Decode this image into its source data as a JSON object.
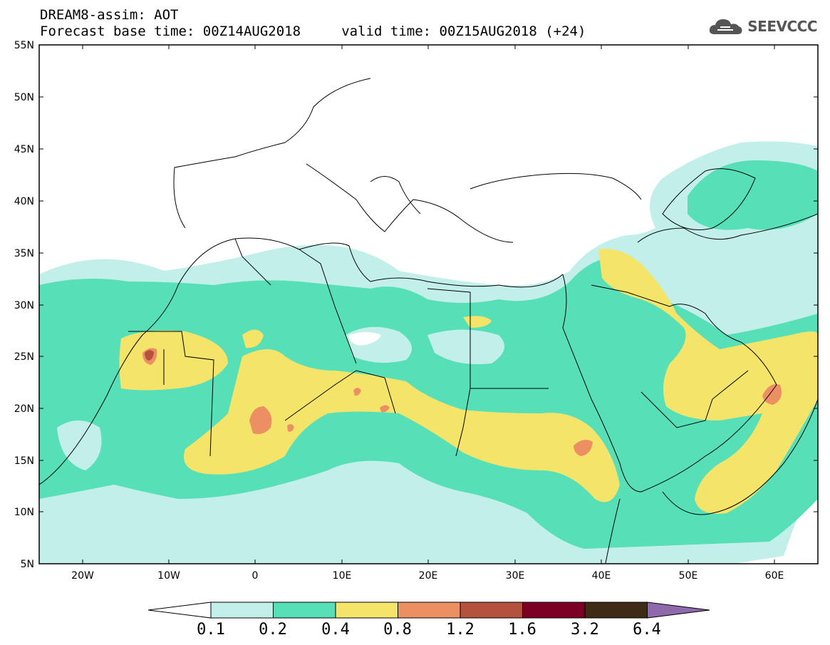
{
  "title": {
    "line1": "DREAM8-assim: AOT",
    "line2": "Forecast base time: 00Z14AUG2018     valid time: 00Z15AUG2018 (+24)"
  },
  "logo": {
    "text": "SEEVCCC",
    "icon": "cloud-logo-icon"
  },
  "map": {
    "lat_labels": [
      "55N",
      "50N",
      "45N",
      "40N",
      "35N",
      "30N",
      "25N",
      "20N",
      "15N",
      "10N",
      "5N"
    ],
    "lon_labels": [
      "20W",
      "10W",
      "0",
      "10E",
      "20E",
      "30E",
      "40E",
      "50E",
      "60E"
    ],
    "lon_range": [
      -25,
      65
    ],
    "lat_range": [
      5,
      55
    ]
  },
  "colorbar": {
    "labels": [
      "0.1",
      "0.2",
      "0.4",
      "0.8",
      "1.2",
      "1.6",
      "3.2",
      "6.4"
    ],
    "colors": [
      "#ffffff",
      "#c2efe9",
      "#57dfb8",
      "#f5e46a",
      "#ec8f62",
      "#b4523e",
      "#7a0024",
      "#3f2a16",
      "#8e6aad"
    ]
  }
}
